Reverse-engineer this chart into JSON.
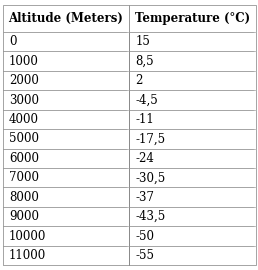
{
  "col1_header": "Altitude (Meters)",
  "col2_header": "Temperature (°C)",
  "rows": [
    [
      "0",
      "15"
    ],
    [
      "1000",
      "8,5"
    ],
    [
      "2000",
      "2"
    ],
    [
      "3000",
      "-4,5"
    ],
    [
      "4000",
      "-11"
    ],
    [
      "5000",
      "-17,5"
    ],
    [
      "6000",
      "-24"
    ],
    [
      "7000",
      "-30,5"
    ],
    [
      "8000",
      "-37"
    ],
    [
      "9000",
      "-43,5"
    ],
    [
      "10000",
      "-50"
    ],
    [
      "11000",
      "-55"
    ]
  ],
  "background_color": "#ffffff",
  "border_color": "#808080",
  "text_color": "#000000",
  "font_size": 8.5,
  "header_font_size": 8.5,
  "fig_width": 2.58,
  "fig_height": 2.7,
  "dpi": 100
}
